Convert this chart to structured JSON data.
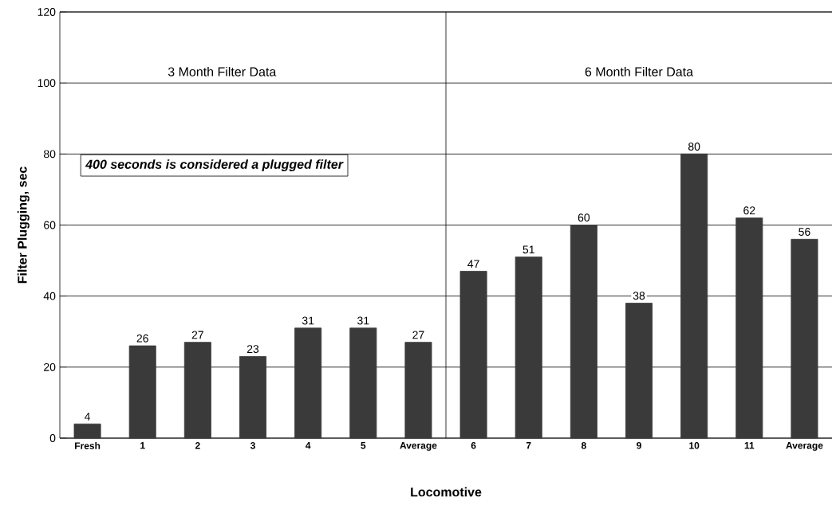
{
  "chart_data": {
    "type": "bar",
    "xlabel": "Locomotive",
    "ylabel": "Filter Plugging, sec",
    "categories": [
      "Fresh",
      "1",
      "2",
      "3",
      "4",
      "5",
      "Average",
      "6",
      "7",
      "8",
      "9",
      "10",
      "11",
      "Average"
    ],
    "values": [
      4,
      26,
      27,
      23,
      31,
      31,
      27,
      47,
      51,
      60,
      38,
      80,
      62,
      56
    ],
    "color": "#3a3a3a",
    "data_labels": true,
    "ylim": [
      0,
      120
    ],
    "yticks": [
      0,
      20,
      40,
      60,
      80,
      100,
      120
    ],
    "grid": "y",
    "annotations": [
      "3 Month Filter Data",
      "6 Month Filter Data",
      "400 seconds is considered a plugged filter"
    ]
  }
}
